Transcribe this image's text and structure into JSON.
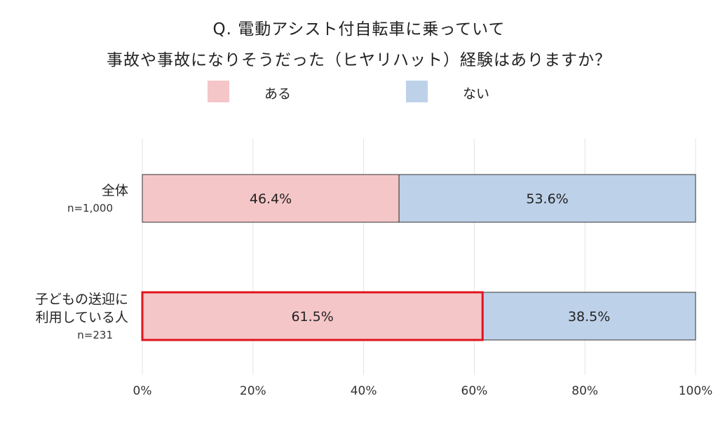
{
  "chart_data": {
    "type": "bar",
    "orientation": "horizontal",
    "stacked": true,
    "title_lines": [
      "Q. 電動アシスト付自転車に乗っていて",
      "事故や事故になりそうだった（ヒヤリハット）経験はありますか？"
    ],
    "categories": [
      {
        "lines": [
          "全体"
        ],
        "n": "n=1,000"
      },
      {
        "lines": [
          "子どもの送迎に",
          "利用している人"
        ],
        "n": "n=231"
      }
    ],
    "series": [
      {
        "name": "ある",
        "color": "#f5c6c8",
        "values": [
          46.4,
          61.5
        ],
        "labels": [
          "46.4%",
          "61.5%"
        ]
      },
      {
        "name": "ない",
        "color": "#bdd1e9",
        "values": [
          53.6,
          38.5
        ],
        "labels": [
          "53.6%",
          "38.5%"
        ]
      }
    ],
    "xlim": [
      0,
      100
    ],
    "xticks": [
      0,
      20,
      40,
      60,
      80,
      100
    ],
    "xtick_labels": [
      "0%",
      "20%",
      "40%",
      "60%",
      "80%",
      "100%"
    ],
    "grid": true,
    "legend_position": "top",
    "highlight": {
      "category_index": 1,
      "series_index": 0,
      "color": "#e0141e"
    }
  }
}
